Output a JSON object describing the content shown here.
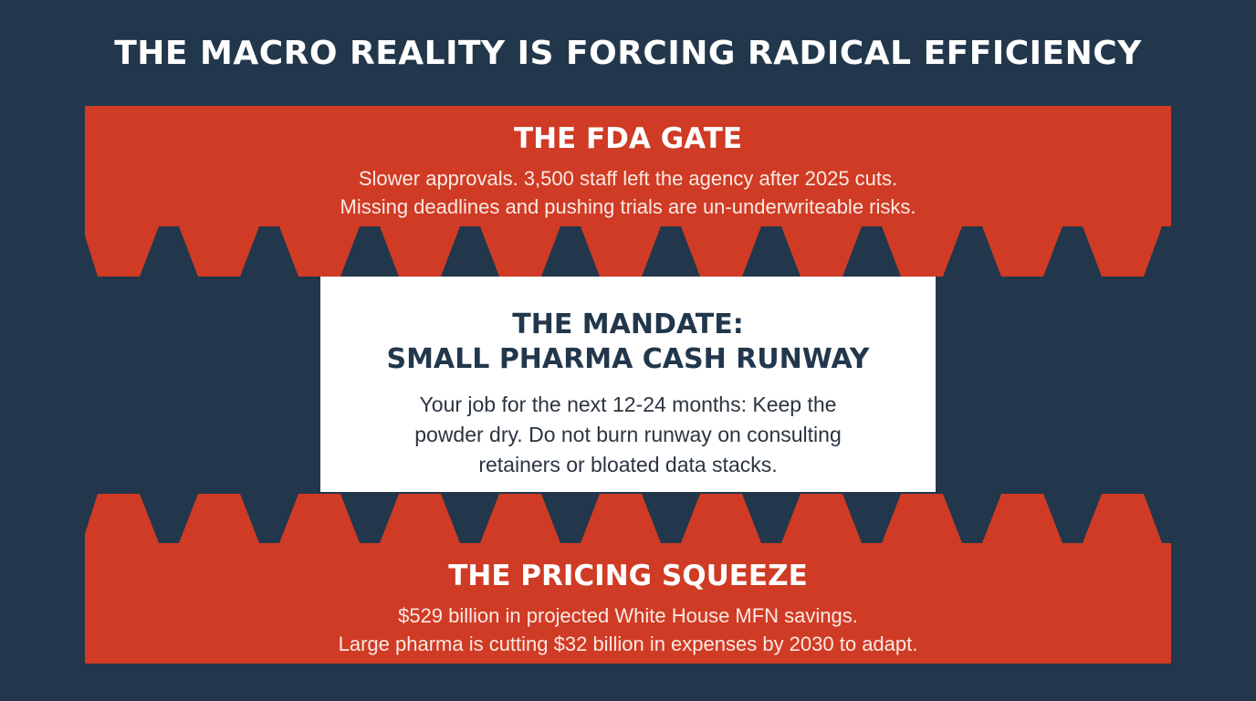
{
  "page": {
    "title": "THE MACRO REALITY IS FORCING RADICAL EFFICIENCY"
  },
  "colors": {
    "background": "#22374b",
    "band": "#cf3b24",
    "panel": "#ffffff",
    "panel_text": "#22374b"
  },
  "top_band": {
    "heading": "THE FDA GATE",
    "lines": [
      "Slower approvals. 3,500 staff left the agency after 2025 cuts.",
      "Missing deadlines and pushing trials are un-underwriteable risks."
    ]
  },
  "center_panel": {
    "heading_lines": [
      "THE MANDATE:",
      "SMALL PHARMA CASH RUNWAY"
    ],
    "body_lines": [
      "Your job for the next 12-24 months: Keep the",
      "powder dry. Do not burn runway on consulting",
      "retainers or bloated data stacks."
    ]
  },
  "bottom_band": {
    "heading": "THE PRICING SQUEEZE",
    "lines": [
      "$529 billion in projected White House MFN savings.",
      "Large pharma is cutting $32 billion in expenses by 2030 to adapt."
    ]
  }
}
